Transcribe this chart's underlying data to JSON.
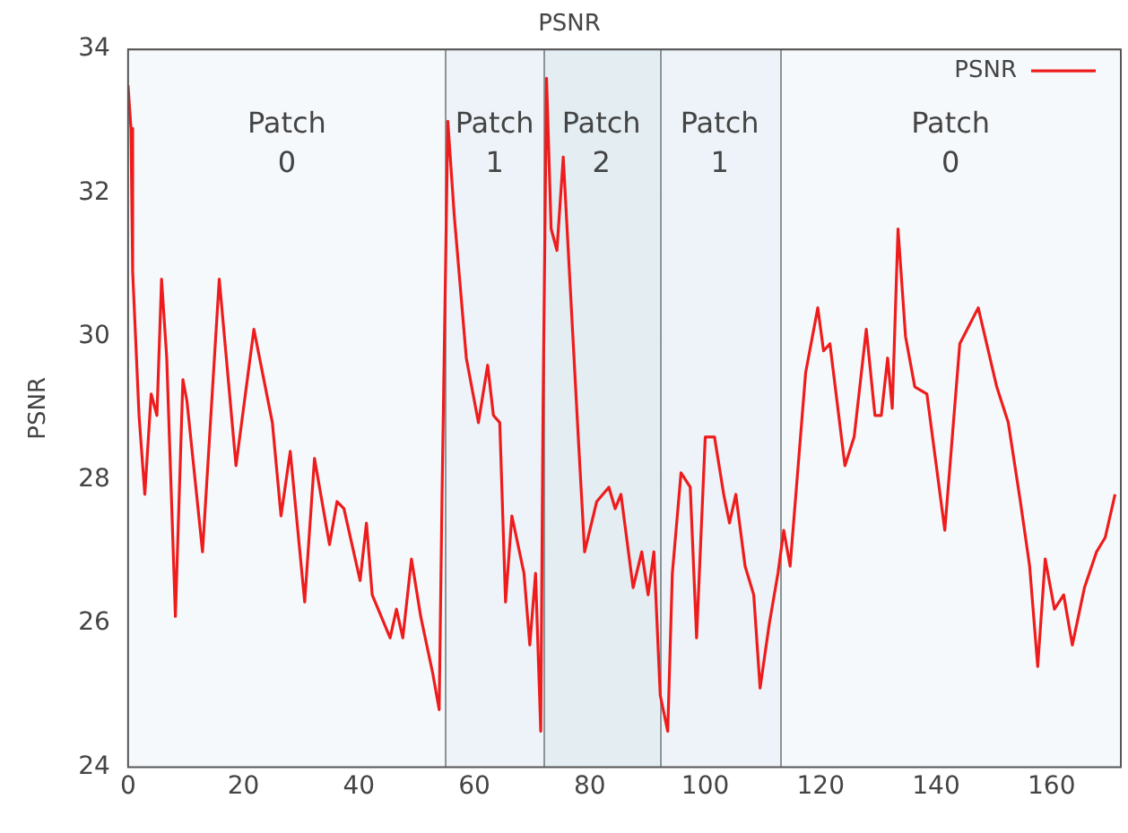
{
  "chart_data": {
    "type": "line",
    "title": "PSNR",
    "ylabel": "PSNR",
    "xlim": [
      0,
      172
    ],
    "xticks": [
      0,
      20,
      40,
      60,
      80,
      100,
      120,
      140,
      160
    ],
    "ylim": [
      24,
      34
    ],
    "yticks": [
      24,
      26,
      28,
      30,
      32,
      34
    ],
    "grid": true,
    "legend": "top right",
    "marker": "none",
    "line_style": "solid",
    "bands": [
      {
        "axis": "x",
        "from": 0,
        "to": 55,
        "label": "Patch 0",
        "color": "#f6f9fc"
      },
      {
        "axis": "x",
        "from": 55,
        "to": 72,
        "label": "Patch 1",
        "color": "#edf3f8"
      },
      {
        "axis": "x",
        "from": 72,
        "to": 92,
        "label": "Patch 2",
        "color": "#e3edf2"
      },
      {
        "axis": "x",
        "from": 92,
        "to": 113,
        "label": "Patch 1",
        "color": "#edf3f8"
      },
      {
        "axis": "x",
        "from": 113,
        "to": 172,
        "label": "Patch 0",
        "color": "#f6f9fc"
      }
    ],
    "series": [
      {
        "name": "PSNR",
        "color": "#ee1c1c",
        "x": [
          0,
          0.5,
          0.8,
          1.9,
          2.9,
          4,
          5,
          5.8,
          6.7,
          8.2,
          9.5,
          10.2,
          12.9,
          15.8,
          18.7,
          21.8,
          25,
          26.5,
          28.1,
          30.6,
          32.3,
          34.9,
          36.2,
          37.4,
          40.2,
          41.3,
          42.3,
          45.4,
          46.5,
          47.6,
          49.1,
          50.7,
          52.8,
          53.9,
          54.4,
          55.4,
          56.5,
          58.6,
          60.7,
          62.3,
          63.3,
          64.4,
          65.4,
          66.5,
          68.6,
          69.6,
          70.6,
          71.5,
          71.9,
          72.5,
          73.3,
          74.3,
          75.4,
          76.4,
          78,
          79.1,
          81.2,
          83.3,
          84.4,
          85.4,
          87.5,
          89,
          90.1,
          91.1,
          92.2,
          93.5,
          94.3,
          95.8,
          97.4,
          98.5,
          100,
          101.6,
          103.2,
          104.2,
          105.3,
          106.9,
          108.4,
          109.5,
          111.1,
          112.6,
          113.6,
          114.7,
          117.4,
          119.5,
          120.5,
          121.6,
          124.2,
          125.8,
          127.9,
          129.4,
          130.5,
          131.6,
          132.4,
          133.4,
          134.7,
          136.3,
          138.4,
          141.5,
          144.1,
          147.3,
          150.5,
          152.5,
          154.6,
          156.2,
          157.6,
          158.9,
          160.5,
          162.1,
          163.6,
          165.7,
          167.8,
          169.3,
          171
        ],
        "values": [
          33.5,
          32.9,
          30.9,
          28.9,
          27.8,
          29.2,
          28.9,
          30.8,
          29.7,
          26.1,
          29.4,
          29.1,
          27,
          30.8,
          28.2,
          30.1,
          28.8,
          27.5,
          28.4,
          26.3,
          28.3,
          27.1,
          27.7,
          27.6,
          26.6,
          27.4,
          26.4,
          25.8,
          26.2,
          25.8,
          26.9,
          26.1,
          25.3,
          24.8,
          27.8,
          33,
          31.7,
          29.7,
          28.8,
          29.6,
          28.9,
          28.8,
          26.3,
          27.5,
          26.7,
          25.7,
          26.7,
          24.5,
          29,
          33.6,
          31.5,
          31.2,
          32.5,
          31,
          28.6,
          27,
          27.7,
          27.9,
          27.6,
          27.8,
          26.5,
          27,
          26.4,
          27,
          25,
          24.5,
          26.7,
          28.1,
          27.9,
          25.8,
          28.6,
          28.6,
          27.8,
          27.4,
          27.8,
          26.8,
          26.4,
          25.1,
          26,
          26.7,
          27.3,
          26.8,
          29.5,
          30.4,
          29.8,
          29.9,
          28.2,
          28.6,
          30.1,
          28.9,
          28.9,
          29.7,
          29,
          31.5,
          30,
          29.3,
          29.2,
          27.3,
          29.9,
          30.4,
          29.3,
          28.8,
          27.7,
          26.8,
          25.4,
          26.9,
          26.2,
          26.4,
          25.7,
          26.5,
          27,
          27.2,
          27.8
        ]
      }
    ]
  }
}
